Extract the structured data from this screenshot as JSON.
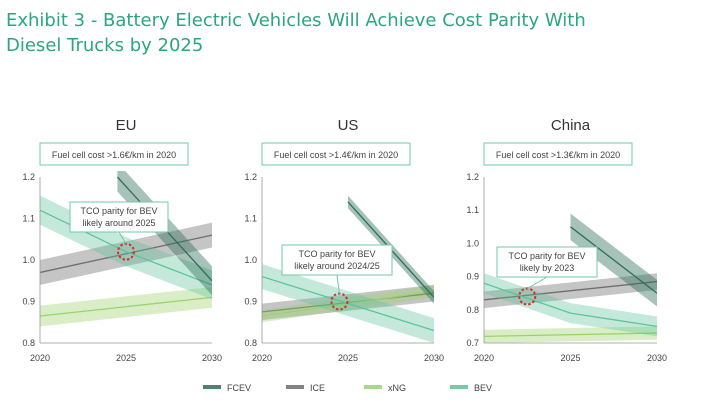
{
  "title": {
    "line1": "Exhibit 3 - Battery Electric Vehicles Will Achieve Cost Parity With",
    "line2": "Diesel Trucks by 2025"
  },
  "colors": {
    "title": "#2aa77c",
    "box_border": "#6fcaa9",
    "FCEV": "#2e6f57",
    "ICE": "#6e6e6e",
    "xNG": "#9bd36b",
    "BEV": "#5cc39a",
    "parity_marker": "#d0312d"
  },
  "legend": [
    {
      "name": "FCEV",
      "color_key": "FCEV"
    },
    {
      "name": "ICE",
      "color_key": "ICE"
    },
    {
      "name": "xNG",
      "color_key": "xNG"
    },
    {
      "name": "BEV",
      "color_key": "BEV"
    }
  ],
  "chart_data": [
    {
      "type": "line",
      "title": "EU",
      "fuel_cell_note": "Fuel cell cost >1.6€/km in 2020",
      "x_ticks": [
        2020,
        2025,
        2030
      ],
      "xlim": [
        2020,
        2030
      ],
      "ylim": [
        0.8,
        1.2
      ],
      "y_ticks": [
        0.8,
        0.9,
        1.0,
        1.1,
        1.2
      ],
      "y_tick_labels": [
        "0.8",
        "0.9",
        "1.0",
        "1.1",
        "1.2"
      ],
      "series": [
        {
          "name": "ICE",
          "x": [
            2020,
            2030
          ],
          "y": [
            0.97,
            1.06
          ],
          "band": 0.03
        },
        {
          "name": "xNG",
          "x": [
            2020,
            2030
          ],
          "y": [
            0.865,
            0.91
          ],
          "band": 0.025
        },
        {
          "name": "BEV",
          "x": [
            2020,
            2025,
            2030
          ],
          "y": [
            1.12,
            1.02,
            0.94
          ],
          "band": 0.035
        },
        {
          "name": "FCEV",
          "x": [
            2024.5,
            2030
          ],
          "y": [
            1.2,
            0.95
          ],
          "band": 0.035
        }
      ],
      "parity": {
        "x": 2025,
        "y": 1.02,
        "label_line1": "TCO parity for BEV",
        "label_line2": "likely around 2025"
      }
    },
    {
      "type": "line",
      "title": "US",
      "fuel_cell_note": "Fuel cell cost >1.4€/km in 2020",
      "x_ticks": [
        2020,
        2025,
        2030
      ],
      "xlim": [
        2020,
        2030
      ],
      "ylim": [
        0.8,
        1.2
      ],
      "y_ticks": [
        0.8,
        0.9,
        1.0,
        1.1,
        1.2
      ],
      "y_tick_labels": [
        "0.8",
        "0.9",
        "1.0",
        "1.1",
        "1.2"
      ],
      "series": [
        {
          "name": "ICE",
          "x": [
            2020,
            2030
          ],
          "y": [
            0.875,
            0.92
          ],
          "band": 0.02
        },
        {
          "name": "xNG",
          "x": [
            2020,
            2030
          ],
          "y": [
            0.865,
            0.925
          ],
          "band": 0.015
        },
        {
          "name": "BEV",
          "x": [
            2020,
            2030
          ],
          "y": [
            0.96,
            0.83
          ],
          "band": 0.03
        },
        {
          "name": "FCEV",
          "x": [
            2025,
            2030
          ],
          "y": [
            1.14,
            0.91
          ],
          "band": 0.015
        }
      ],
      "parity": {
        "x": 2024.5,
        "y": 0.9,
        "label_line1": "TCO parity for BEV",
        "label_line2": "likely around 2024/25"
      }
    },
    {
      "type": "line",
      "title": "China",
      "fuel_cell_note": "Fuel cell cost >1.3€/km in 2020",
      "x_ticks": [
        2020,
        2025,
        2030
      ],
      "xlim": [
        2020,
        2030
      ],
      "ylim": [
        0.7,
        1.2
      ],
      "y_ticks": [
        0.7,
        0.8,
        0.9,
        1.0,
        1.1,
        1.2
      ],
      "y_tick_labels": [
        "0.7",
        "0.8",
        "0.9",
        "1.0",
        "1.1",
        "1.2"
      ],
      "series": [
        {
          "name": "ICE",
          "x": [
            2020,
            2030
          ],
          "y": [
            0.83,
            0.885
          ],
          "band": 0.025
        },
        {
          "name": "xNG",
          "x": [
            2020,
            2030
          ],
          "y": [
            0.72,
            0.73
          ],
          "band": 0.02
        },
        {
          "name": "BEV",
          "x": [
            2020,
            2025,
            2030
          ],
          "y": [
            0.88,
            0.79,
            0.75
          ],
          "band": 0.03
        },
        {
          "name": "FCEV",
          "x": [
            2025,
            2030
          ],
          "y": [
            1.05,
            0.85
          ],
          "band": 0.04
        }
      ],
      "parity": {
        "x": 2022.5,
        "y": 0.84,
        "label_line1": "TCO parity for BEV",
        "label_line2": "likely by 2023"
      }
    }
  ]
}
